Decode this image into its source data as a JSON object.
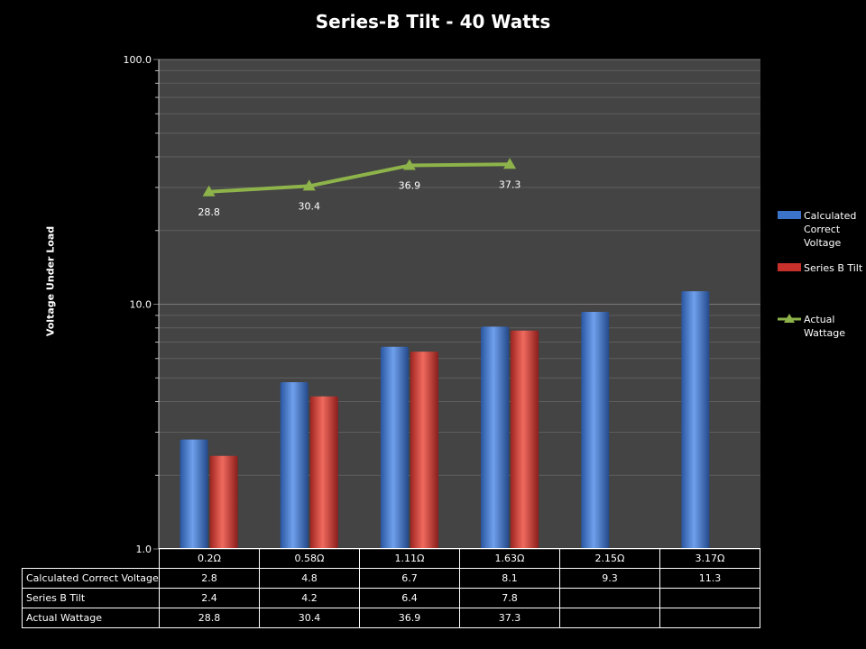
{
  "chart_data": {
    "type": "bar",
    "title": "Series-B Tilt - 40 Watts",
    "ylabel": "Voltage Under Load",
    "xlabel": "",
    "yscale": "log",
    "ylim": [
      1.0,
      100.0
    ],
    "yticks": [
      "1.0",
      "10.0",
      "100.0"
    ],
    "categories": [
      "0.2Ω",
      "0.58Ω",
      "1.11Ω",
      "1.63Ω",
      "2.15Ω",
      "3.17Ω"
    ],
    "series": [
      {
        "name": "Calculated Correct Voltage",
        "type": "bar",
        "color": "#3a73c8",
        "values": [
          2.8,
          4.8,
          6.7,
          8.1,
          9.3,
          11.3
        ]
      },
      {
        "name": "Series B Tilt",
        "type": "bar",
        "color": "#c8302b",
        "values": [
          2.4,
          4.2,
          6.4,
          7.8,
          null,
          null
        ]
      },
      {
        "name": "Actual Wattage",
        "type": "line",
        "color": "#8db34a",
        "values": [
          28.8,
          30.4,
          36.9,
          37.3,
          null,
          null
        ]
      }
    ],
    "legend_entries": [
      "Calculated Correct Voltage",
      "Series B Tilt",
      "Actual Wattage"
    ],
    "legend_position": "right",
    "data_labels": [
      "28.8",
      "30.4",
      "36.9",
      "37.3"
    ],
    "grid": true,
    "data_table": {
      "row_headers": [
        "Calculated Correct Voltage",
        "Series B Tilt",
        "Actual Wattage"
      ],
      "rows": [
        [
          "2.8",
          "4.8",
          "6.7",
          "8.1",
          "9.3",
          "11.3"
        ],
        [
          "2.4",
          "4.2",
          "6.4",
          "7.8",
          "",
          ""
        ],
        [
          "28.8",
          "30.4",
          "36.9",
          "37.3",
          "",
          ""
        ]
      ]
    }
  },
  "legend": {
    "item1": "Calculated Correct Voltage",
    "item2": "Series B Tilt",
    "item3": "Actual Wattage"
  }
}
